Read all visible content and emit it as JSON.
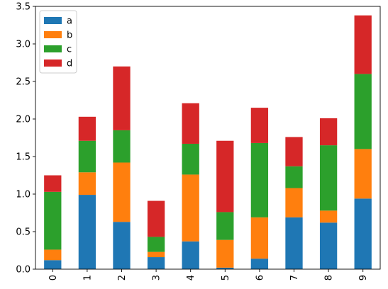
{
  "chart_data": {
    "type": "bar",
    "stacked": true,
    "categories": [
      "0",
      "1",
      "2",
      "3",
      "4",
      "5",
      "6",
      "7",
      "8",
      "9"
    ],
    "series": [
      {
        "name": "a",
        "color": "#1f77b4",
        "values": [
          0.12,
          0.99,
          0.63,
          0.16,
          0.37,
          0.02,
          0.14,
          0.69,
          0.62,
          0.94
        ]
      },
      {
        "name": "b",
        "color": "#ff7f0e",
        "values": [
          0.14,
          0.3,
          0.79,
          0.07,
          0.89,
          0.37,
          0.55,
          0.39,
          0.16,
          0.66
        ]
      },
      {
        "name": "c",
        "color": "#2ca02c",
        "values": [
          0.77,
          0.42,
          0.43,
          0.2,
          0.41,
          0.37,
          0.99,
          0.29,
          0.87,
          1.0
        ]
      },
      {
        "name": "d",
        "color": "#d62728",
        "values": [
          0.22,
          0.32,
          0.85,
          0.48,
          0.54,
          0.95,
          0.47,
          0.39,
          0.36,
          0.78
        ]
      }
    ],
    "title": "",
    "xlabel": "",
    "ylabel": "",
    "ylim": [
      0,
      3.5
    ],
    "yticks": [
      "0.0",
      "0.5",
      "1.0",
      "1.5",
      "2.0",
      "2.5",
      "3.0",
      "3.5"
    ],
    "x_tick_rotation": "vertical",
    "grid": false,
    "legend_position": "upper-left"
  }
}
